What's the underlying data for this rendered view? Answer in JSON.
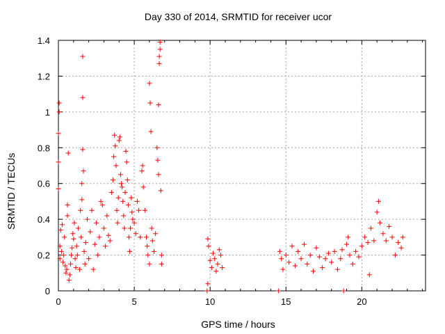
{
  "chart_data": {
    "type": "scatter",
    "title": "Day 330 of 2014, SRMTID for receiver ucor",
    "xlabel": "GPS time / hours",
    "ylabel": "SRMTID / TECUs",
    "xlim": [
      0,
      24.2
    ],
    "ylim": [
      0,
      1.4
    ],
    "x_ticks": [
      0,
      5,
      10,
      15,
      20
    ],
    "x_tick_labels": [
      "0",
      "5",
      "10",
      "15",
      "20"
    ],
    "y_ticks": [
      0,
      0.2,
      0.4,
      0.6,
      0.8,
      1.0,
      1.2,
      1.4
    ],
    "y_tick_labels": [
      "0",
      "0.2",
      "0.4",
      "0.6",
      "0.8",
      "1",
      "1.2",
      "1.4"
    ],
    "grid": true,
    "marker": "+",
    "color": "#ff0000",
    "series": [
      {
        "name": "SRMTID",
        "points": [
          [
            0.0,
            0.57
          ],
          [
            0.0,
            0.72
          ],
          [
            0.0,
            0.88
          ],
          [
            0.05,
            1.0
          ],
          [
            0.05,
            1.05
          ],
          [
            0.1,
            0.18
          ],
          [
            0.1,
            0.25
          ],
          [
            0.15,
            0.34
          ],
          [
            0.2,
            0.22
          ],
          [
            0.25,
            0.37
          ],
          [
            0.3,
            0.16
          ],
          [
            0.35,
            0.2
          ],
          [
            0.4,
            0.3
          ],
          [
            0.45,
            0.14
          ],
          [
            0.5,
            0.1
          ],
          [
            0.55,
            0.12
          ],
          [
            0.6,
            0.42
          ],
          [
            0.6,
            0.48
          ],
          [
            0.65,
            0.77
          ],
          [
            0.7,
            0.06
          ],
          [
            0.75,
            0.09
          ],
          [
            0.8,
            0.15
          ],
          [
            0.85,
            0.2
          ],
          [
            0.9,
            0.24
          ],
          [
            0.95,
            0.32
          ],
          [
            1.0,
            0.29
          ],
          [
            1.05,
            0.38
          ],
          [
            1.1,
            0.18
          ],
          [
            1.15,
            0.13
          ],
          [
            1.2,
            0.25
          ],
          [
            1.25,
            0.2
          ],
          [
            1.3,
            0.35
          ],
          [
            1.4,
            0.12
          ],
          [
            1.45,
            0.45
          ],
          [
            1.5,
            0.3
          ],
          [
            1.55,
            0.51
          ],
          [
            1.55,
            0.6
          ],
          [
            1.6,
            1.31
          ],
          [
            1.6,
            1.08
          ],
          [
            1.6,
            0.79
          ],
          [
            1.65,
            0.67
          ],
          [
            1.7,
            0.22
          ],
          [
            1.75,
            0.15
          ],
          [
            1.8,
            0.27
          ],
          [
            1.9,
            0.4
          ],
          [
            2.0,
            0.18
          ],
          [
            2.1,
            0.33
          ],
          [
            2.2,
            0.45
          ],
          [
            2.3,
            0.12
          ],
          [
            2.4,
            0.26
          ],
          [
            2.5,
            0.38
          ],
          [
            2.6,
            0.2
          ],
          [
            2.7,
            0.3
          ],
          [
            2.8,
            0.5
          ],
          [
            2.9,
            0.48
          ],
          [
            3.0,
            0.35
          ],
          [
            3.1,
            0.25
          ],
          [
            3.2,
            0.42
          ],
          [
            3.3,
            0.31
          ],
          [
            3.4,
            0.28
          ],
          [
            3.5,
            0.55
          ],
          [
            3.6,
            0.62
          ],
          [
            3.65,
            0.75
          ],
          [
            3.7,
            0.87
          ],
          [
            3.75,
            0.81
          ],
          [
            3.8,
            0.7
          ],
          [
            3.85,
            0.45
          ],
          [
            3.9,
            0.38
          ],
          [
            3.95,
            0.52
          ],
          [
            4.0,
            0.84
          ],
          [
            4.05,
            0.86
          ],
          [
            4.1,
            0.65
          ],
          [
            4.15,
            0.6
          ],
          [
            4.2,
            0.58
          ],
          [
            4.25,
            0.5
          ],
          [
            4.3,
            0.42
          ],
          [
            4.35,
            0.35
          ],
          [
            4.4,
            0.55
          ],
          [
            4.45,
            0.78
          ],
          [
            4.5,
            0.72
          ],
          [
            4.55,
            0.62
          ],
          [
            4.6,
            0.48
          ],
          [
            4.65,
            0.3
          ],
          [
            4.7,
            0.22
          ],
          [
            4.75,
            0.35
          ],
          [
            4.8,
            0.52
          ],
          [
            4.85,
            0.44
          ],
          [
            4.9,
            0.4
          ],
          [
            5.0,
            0.38
          ],
          [
            5.1,
            0.32
          ],
          [
            5.2,
            0.5
          ],
          [
            5.3,
            0.45
          ],
          [
            5.4,
            0.3
          ],
          [
            5.5,
            0.67
          ],
          [
            5.55,
            0.7
          ],
          [
            5.6,
            0.58
          ],
          [
            5.7,
            0.45
          ],
          [
            5.8,
            0.3
          ],
          [
            5.85,
            0.25
          ],
          [
            5.9,
            0.2
          ],
          [
            6.0,
            0.15
          ],
          [
            6.0,
            1.16
          ],
          [
            6.05,
            1.05
          ],
          [
            6.1,
            0.89
          ],
          [
            6.15,
            0.35
          ],
          [
            6.2,
            0.28
          ],
          [
            6.3,
            0.22
          ],
          [
            6.4,
            0.32
          ],
          [
            6.5,
            0.8
          ],
          [
            6.55,
            0.73
          ],
          [
            6.6,
            0.65
          ],
          [
            6.6,
            1.04
          ],
          [
            6.65,
            1.27
          ],
          [
            6.65,
            1.31
          ],
          [
            6.7,
            1.35
          ],
          [
            6.7,
            1.39
          ],
          [
            6.75,
            0.56
          ],
          [
            6.8,
            0.15
          ],
          [
            6.8,
            0.2
          ],
          [
            9.8,
            0.0
          ],
          [
            9.85,
            0.04
          ],
          [
            9.85,
            0.29
          ],
          [
            9.9,
            0.25
          ],
          [
            10.0,
            0.17
          ],
          [
            10.1,
            0.13
          ],
          [
            10.2,
            0.21
          ],
          [
            10.3,
            0.18
          ],
          [
            10.4,
            0.11
          ],
          [
            10.5,
            0.15
          ],
          [
            10.6,
            0.23
          ],
          [
            10.7,
            0.2
          ],
          [
            10.8,
            0.13
          ],
          [
            14.5,
            0.0
          ],
          [
            14.6,
            0.22
          ],
          [
            14.7,
            0.18
          ],
          [
            14.8,
            0.12
          ],
          [
            15.0,
            0.2
          ],
          [
            15.2,
            0.16
          ],
          [
            15.4,
            0.25
          ],
          [
            15.6,
            0.14
          ],
          [
            15.8,
            0.22
          ],
          [
            16.0,
            0.18
          ],
          [
            16.2,
            0.26
          ],
          [
            16.4,
            0.15
          ],
          [
            16.6,
            0.2
          ],
          [
            16.8,
            0.11
          ],
          [
            17.0,
            0.24
          ],
          [
            17.2,
            0.19
          ],
          [
            17.4,
            0.13
          ],
          [
            17.6,
            0.18
          ],
          [
            17.8,
            0.21
          ],
          [
            18.0,
            0.16
          ],
          [
            18.2,
            0.22
          ],
          [
            18.4,
            0.12
          ],
          [
            18.6,
            0.18
          ],
          [
            18.7,
            0.23
          ],
          [
            18.8,
            0.0
          ],
          [
            19.0,
            0.26
          ],
          [
            19.1,
            0.3
          ],
          [
            19.2,
            0.2
          ],
          [
            19.4,
            0.15
          ],
          [
            19.6,
            0.22
          ],
          [
            19.8,
            0.19
          ],
          [
            20.0,
            0.25
          ],
          [
            20.2,
            0.3
          ],
          [
            20.4,
            0.27
          ],
          [
            20.5,
            0.09
          ],
          [
            20.6,
            0.35
          ],
          [
            20.8,
            0.28
          ],
          [
            21.0,
            0.44
          ],
          [
            21.1,
            0.5
          ],
          [
            21.2,
            0.38
          ],
          [
            21.4,
            0.32
          ],
          [
            21.6,
            0.28
          ],
          [
            21.8,
            0.36
          ],
          [
            22.0,
            0.3
          ],
          [
            22.2,
            0.2
          ],
          [
            22.4,
            0.27
          ],
          [
            22.6,
            0.24
          ],
          [
            22.7,
            0.3
          ]
        ]
      }
    ]
  }
}
